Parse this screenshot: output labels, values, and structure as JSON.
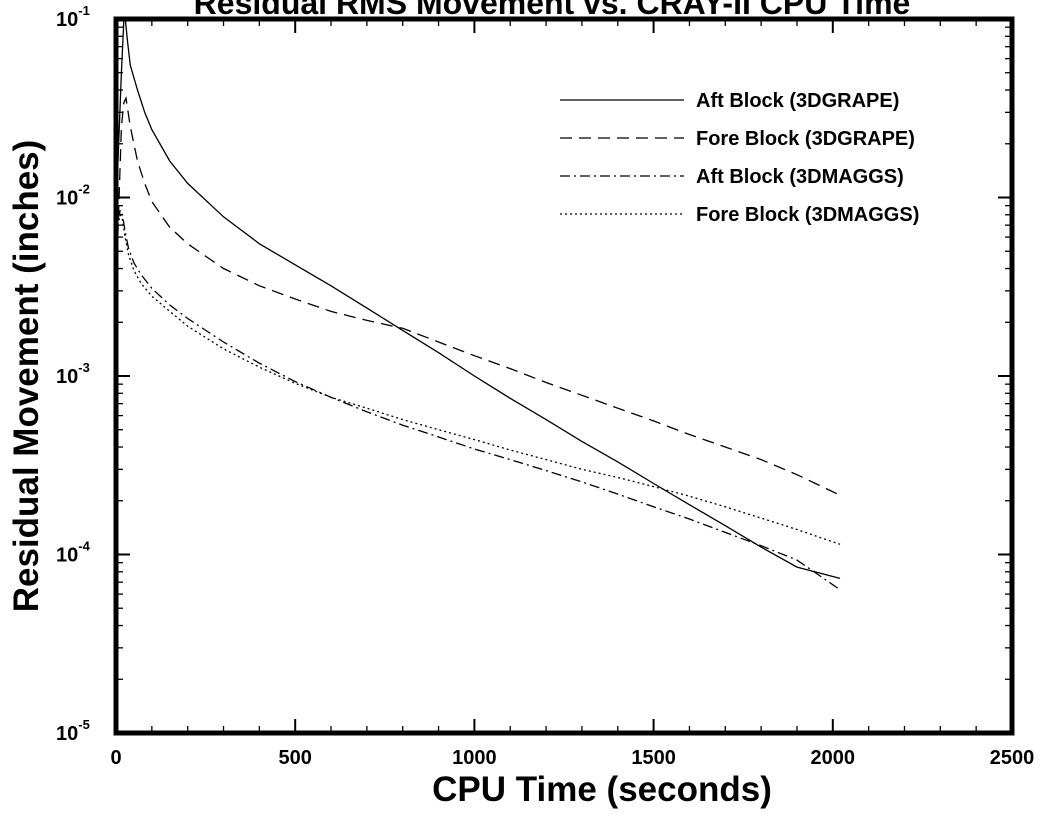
{
  "chart_data": {
    "type": "line",
    "title": "Residual RMS Movement vs. CRAY-II CPU Time",
    "xlabel": "CPU Time (seconds)",
    "ylabel": "Residual Movement (inches)",
    "xlim": [
      0,
      2500
    ],
    "ylim": [
      1e-05,
      0.1
    ],
    "yscale": "log",
    "grid": false,
    "legend_position": "top-right",
    "x_ticks": [
      "0",
      "500",
      "1000",
      "1500",
      "2000",
      "2500"
    ],
    "y_ticks": [
      {
        "base": "10",
        "exp": "-5"
      },
      {
        "base": "10",
        "exp": "-4"
      },
      {
        "base": "10",
        "exp": "-3"
      },
      {
        "base": "10",
        "exp": "-2"
      },
      {
        "base": "10",
        "exp": "-1"
      }
    ],
    "series": [
      {
        "name": "Aft Block (3DGRAPE)",
        "line_style": "solid",
        "x": [
          5,
          15,
          22,
          26,
          32,
          40,
          60,
          80,
          100,
          150,
          200,
          300,
          400,
          500,
          600,
          700,
          800,
          900,
          1000,
          1100,
          1200,
          1300,
          1400,
          1500,
          1600,
          1700,
          1800,
          1900,
          2020
        ],
        "y": [
          0.015,
          0.05,
          0.1,
          0.1,
          0.075,
          0.055,
          0.04,
          0.03,
          0.024,
          0.016,
          0.012,
          0.0078,
          0.0055,
          0.0042,
          0.0032,
          0.0024,
          0.0018,
          0.00135,
          0.001,
          0.00075,
          0.00057,
          0.00043,
          0.00033,
          0.00025,
          0.00019,
          0.000145,
          0.00011,
          8.5e-05,
          7.35e-05
        ]
      },
      {
        "name": "Fore Block (3DGRAPE)",
        "line_style": "dashed",
        "x": [
          5,
          15,
          22,
          28,
          40,
          60,
          80,
          100,
          150,
          200,
          300,
          400,
          500,
          600,
          700,
          800,
          900,
          1000,
          1100,
          1200,
          1300,
          1400,
          1500,
          1600,
          1700,
          1800,
          1900,
          2020
        ],
        "y": [
          0.006,
          0.025,
          0.034,
          0.036,
          0.025,
          0.016,
          0.012,
          0.0095,
          0.0068,
          0.0055,
          0.004,
          0.0032,
          0.0027,
          0.0023,
          0.00205,
          0.00185,
          0.00155,
          0.0013,
          0.0011,
          0.00092,
          0.00078,
          0.00066,
          0.00056,
          0.00047,
          0.0004,
          0.00034,
          0.00028,
          0.000215
        ]
      },
      {
        "name": "Aft Block (3DMAGGS)",
        "line_style": "dash-dot",
        "x": [
          5,
          12,
          18,
          25,
          35,
          50,
          70,
          100,
          150,
          200,
          300,
          400,
          500,
          600,
          700,
          800,
          900,
          1000,
          1100,
          1200,
          1300,
          1400,
          1500,
          1600,
          1700,
          1800,
          1900,
          2020
        ],
        "y": [
          0.0075,
          0.0085,
          0.008,
          0.0065,
          0.0052,
          0.0043,
          0.0037,
          0.0031,
          0.0025,
          0.0021,
          0.00155,
          0.00118,
          0.00093,
          0.00076,
          0.00063,
          0.00053,
          0.000455,
          0.00039,
          0.00034,
          0.000295,
          0.000255,
          0.000218,
          0.000185,
          0.000158,
          0.000133,
          0.000112,
          9.3e-05,
          6.35e-05
        ]
      },
      {
        "name": "Fore Block (3DMAGGS)",
        "line_style": "dotted",
        "x": [
          5,
          12,
          18,
          25,
          35,
          50,
          70,
          100,
          150,
          200,
          300,
          400,
          500,
          600,
          700,
          800,
          900,
          1000,
          1100,
          1200,
          1300,
          1400,
          1500,
          1600,
          1700,
          1800,
          1900,
          2020
        ],
        "y": [
          0.007,
          0.008,
          0.0075,
          0.006,
          0.0048,
          0.0039,
          0.0033,
          0.0028,
          0.0023,
          0.0019,
          0.00142,
          0.00112,
          0.00091,
          0.00076,
          0.00066,
          0.00057,
          0.0005,
          0.00044,
          0.000385,
          0.00034,
          0.0003,
          0.00027,
          0.00024,
          0.000212,
          0.000185,
          0.00016,
          0.000138,
          0.000114
        ]
      }
    ]
  }
}
